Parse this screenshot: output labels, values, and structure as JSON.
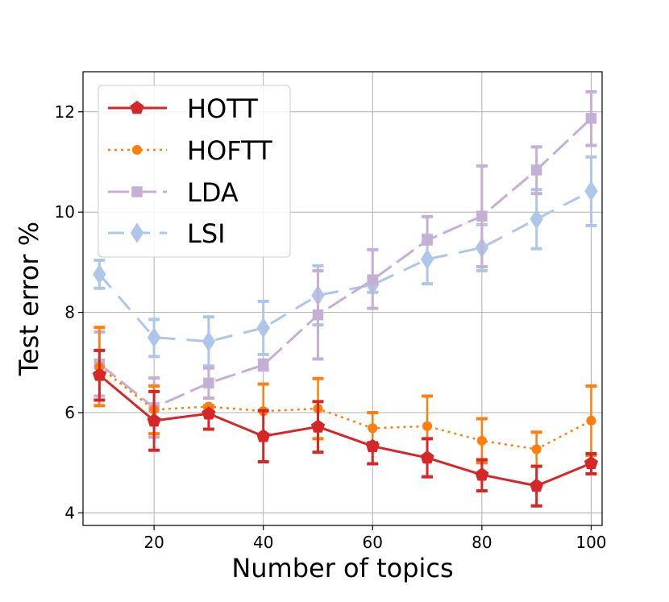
{
  "chart_data": {
    "type": "line",
    "xlabel": "Number of topics",
    "ylabel": "Test error %",
    "xlim": [
      7,
      102
    ],
    "ylim": [
      3.75,
      12.8
    ],
    "xticks": [
      20,
      40,
      60,
      80,
      100
    ],
    "yticks": [
      4,
      6,
      8,
      10,
      12
    ],
    "grid": true,
    "legend_position": "top-left",
    "x": [
      10,
      20,
      30,
      40,
      50,
      60,
      70,
      80,
      90,
      100
    ],
    "series": [
      {
        "name": "HOTT",
        "color": "#d62728",
        "style": "solid",
        "marker": "pentagon",
        "values": [
          6.75,
          5.84,
          5.98,
          5.53,
          5.72,
          5.33,
          5.1,
          4.76,
          4.54,
          4.99
        ],
        "err_low": [
          6.25,
          5.25,
          5.67,
          5.02,
          5.21,
          4.98,
          4.72,
          4.44,
          4.14,
          4.78
        ],
        "err_high": [
          7.24,
          6.42,
          6.02,
          6.04,
          6.22,
          5.4,
          5.48,
          5.06,
          4.93,
          5.18
        ]
      },
      {
        "name": "HOFTT",
        "color": "#ff7f0e",
        "style": "dotted",
        "marker": "circle",
        "values": [
          6.91,
          6.06,
          6.12,
          6.03,
          6.08,
          5.69,
          5.73,
          5.44,
          5.27,
          5.84
        ],
        "err_low": [
          6.14,
          5.58,
          6.1,
          5.5,
          5.48,
          5.37,
          5.13,
          5.0,
          4.93,
          5.15
        ],
        "err_high": [
          7.7,
          6.53,
          6.14,
          6.57,
          6.68,
          6.0,
          6.33,
          5.88,
          5.61,
          6.53
        ]
      },
      {
        "name": "LDA",
        "color": "#c5b0d5",
        "style": "longdash",
        "marker": "square",
        "values": [
          6.97,
          6.1,
          6.59,
          6.95,
          7.95,
          8.65,
          9.44,
          9.92,
          10.84,
          11.87
        ],
        "err_low": [
          6.33,
          5.51,
          6.29,
          6.85,
          7.07,
          8.08,
          9.4,
          8.91,
          10.37,
          11.33
        ],
        "err_high": [
          7.61,
          6.69,
          6.89,
          7.05,
          8.83,
          9.25,
          9.91,
          10.92,
          11.3,
          12.4
        ]
      },
      {
        "name": "LSI",
        "color": "#aec7e8",
        "style": "dashed",
        "marker": "diamond",
        "values": [
          8.76,
          7.5,
          7.42,
          7.69,
          8.34,
          8.55,
          9.06,
          9.29,
          9.86,
          10.42
        ],
        "err_low": [
          8.48,
          7.12,
          6.93,
          7.16,
          7.75,
          8.4,
          8.57,
          8.83,
          9.27,
          9.73
        ],
        "err_high": [
          9.04,
          7.86,
          7.91,
          8.22,
          8.93,
          8.7,
          9.54,
          9.75,
          10.45,
          11.1
        ]
      }
    ]
  }
}
